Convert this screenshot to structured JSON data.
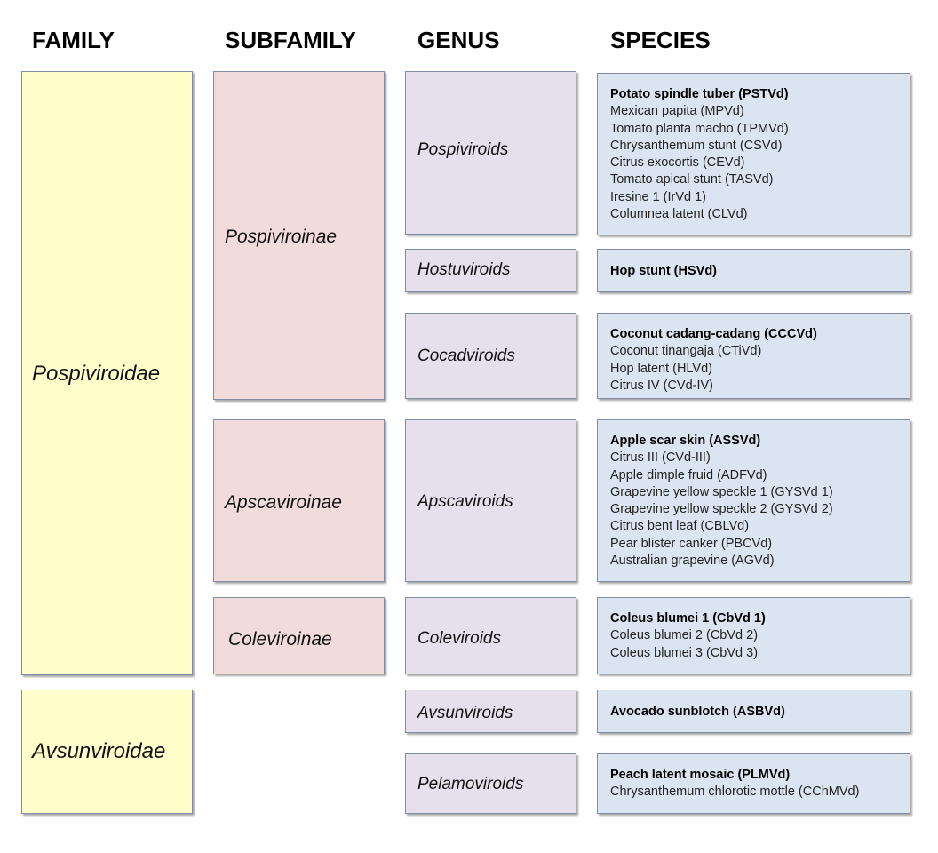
{
  "headers": {
    "family": "FAMILY",
    "subfamily": "SUBFAMILY",
    "genus": "GENUS",
    "species": "SPECIES"
  },
  "families": [
    {
      "name": "Pospiviroidae"
    },
    {
      "name": "Avsunviroidae"
    }
  ],
  "subfamilies": [
    {
      "name": "Pospiviroinae"
    },
    {
      "name": "Apscaviroinae"
    },
    {
      "name": "Coleviroinae"
    }
  ],
  "genera": [
    {
      "name": "Pospiviroids",
      "species": [
        "Potato spindle tuber (PSTVd)",
        "Mexican papita (MPVd)",
        "Tomato planta macho (TPMVd)",
        "Chrysanthemum stunt (CSVd)",
        "Citrus exocortis (CEVd)",
        "Tomato apical stunt (TASVd)",
        "Iresine 1 (IrVd 1)",
        "Columnea latent (CLVd)"
      ]
    },
    {
      "name": "Hostuviroids",
      "species": [
        "Hop stunt (HSVd)"
      ]
    },
    {
      "name": "Cocadviroids",
      "species": [
        "Coconut cadang-cadang (CCCVd)",
        "Coconut tinangaja (CTiVd)",
        "Hop latent (HLVd)",
        "Citrus IV (CVd-IV)"
      ]
    },
    {
      "name": "Apscaviroids",
      "species": [
        "Apple scar skin (ASSVd)",
        "Citrus III (CVd-III)",
        "Apple dimple fruid (ADFVd)",
        "Grapevine yellow speckle 1 (GYSVd 1)",
        "Grapevine yellow speckle 2 (GYSVd 2)",
        "Citrus bent leaf (CBLVd)",
        "Pear blister canker (PBCVd)",
        "Australian grapevine (AGVd)"
      ]
    },
    {
      "name": "Coleviroids",
      "species": [
        "Coleus blumei 1 (CbVd 1)",
        "Coleus blumei 2 (CbVd 2)",
        "Coleus blumei 3 (CbVd 3)"
      ]
    },
    {
      "name": "Avsunviroids",
      "species": [
        "Avocado sunblotch (ASBVd)"
      ]
    },
    {
      "name": "Pelamoviroids",
      "species": [
        "Peach latent mosaic (PLMVd)",
        "Chrysanthemum chlorotic mottle (CChMVd)"
      ]
    }
  ],
  "colors": {
    "family": "#ffffcc",
    "subfamily": "#f2dcdb",
    "genus": "#e6e0ec",
    "species": "#dbe5f1",
    "border": "#7f8da6"
  }
}
